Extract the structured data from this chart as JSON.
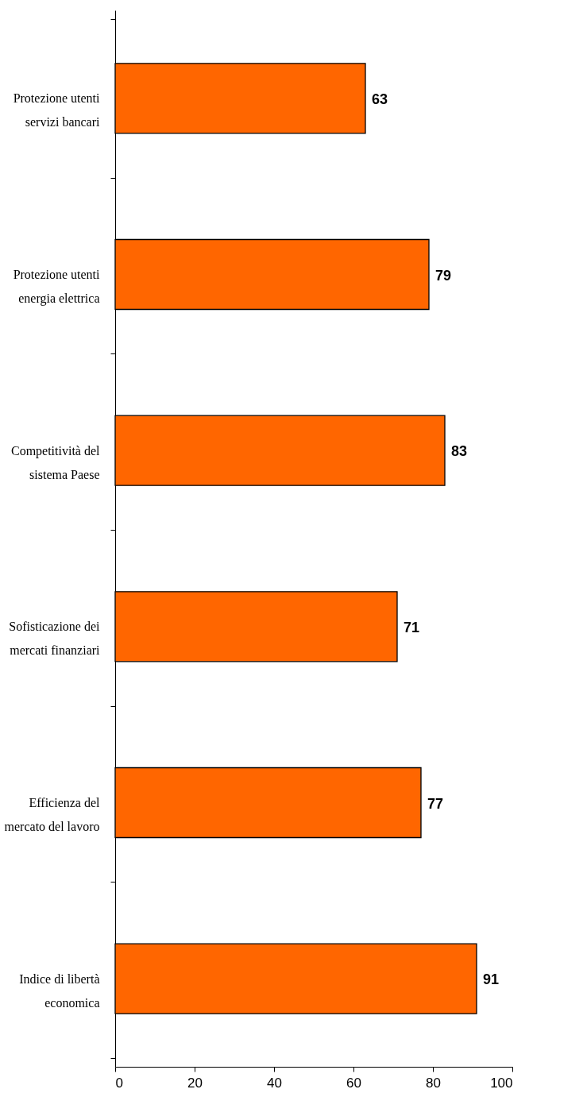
{
  "chart_data": {
    "type": "bar",
    "orientation": "horizontal",
    "categories": [
      "Protezione utenti servizi bancari",
      "Protezione utenti energia elettrica",
      "Competitività del sistema Paese",
      "Sofisticazione dei mercati finanziari",
      "Efficienza del mercato del lavoro",
      "Indice di libertà economica"
    ],
    "values": [
      63,
      79,
      83,
      71,
      77,
      91
    ],
    "color": "#ff6600",
    "xlim": [
      0,
      100
    ],
    "xticks": [
      0,
      20,
      40,
      60,
      80,
      100
    ],
    "data_labels": true,
    "grid": false
  }
}
